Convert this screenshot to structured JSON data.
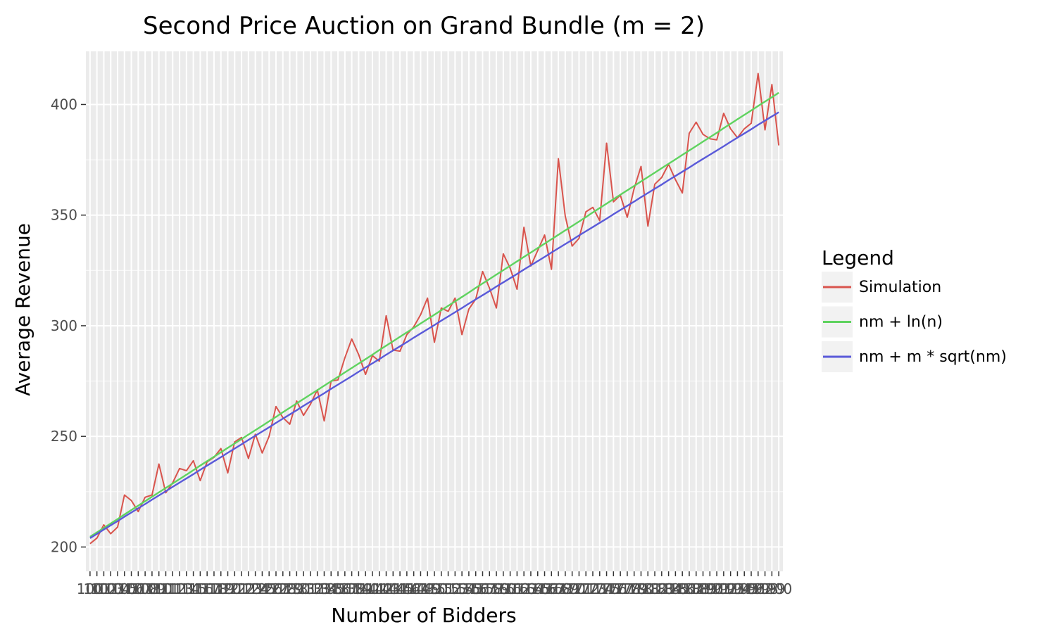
{
  "chart_data": {
    "type": "line",
    "title": "Second Price Auction on Grand Bundle (m = 2)",
    "xlabel": "Number of Bidders",
    "ylabel": "Average Revenue",
    "ylim": [
      189,
      424
    ],
    "yticks": [
      200,
      250,
      300,
      350,
      400
    ],
    "x": [
      100,
      101,
      102,
      103,
      104,
      105,
      106,
      107,
      108,
      109,
      110,
      111,
      112,
      113,
      114,
      115,
      116,
      117,
      118,
      119,
      120,
      121,
      122,
      123,
      124,
      125,
      126,
      127,
      128,
      129,
      130,
      131,
      132,
      133,
      134,
      135,
      136,
      137,
      138,
      139,
      140,
      141,
      142,
      143,
      144,
      145,
      146,
      147,
      148,
      149,
      150,
      151,
      152,
      153,
      154,
      155,
      156,
      157,
      158,
      159,
      160,
      161,
      162,
      163,
      164,
      165,
      166,
      167,
      168,
      169,
      170,
      171,
      172,
      173,
      174,
      175,
      176,
      177,
      178,
      179,
      180,
      181,
      182,
      183,
      184,
      185,
      186,
      187,
      188,
      189,
      190,
      191,
      192,
      193,
      194,
      195,
      196,
      197,
      198,
      199,
      200
    ],
    "x_tick_labels": [
      "100",
      "101",
      "102",
      "103",
      "104",
      "105",
      "106",
      "107",
      "108",
      "109",
      "110",
      "111",
      "112",
      "113",
      "114",
      "115",
      "116",
      "117",
      "118",
      "119",
      "120",
      "121",
      "122",
      "123",
      "124",
      "125",
      "126",
      "127",
      "128",
      "129",
      "130",
      "131",
      "132",
      "133",
      "134",
      "135",
      "136",
      "137",
      "138",
      "139",
      "140",
      "141",
      "142",
      "143",
      "144",
      "145",
      "146",
      "147",
      "148",
      "149",
      "150",
      "151",
      "152",
      "153",
      "154",
      "155",
      "156",
      "157",
      "158",
      "159",
      "160",
      "161",
      "162",
      "163",
      "164",
      "165",
      "166",
      "167",
      "168",
      "169",
      "170",
      "171",
      "172",
      "173",
      "174",
      "175",
      "176",
      "177",
      "178",
      "179",
      "180",
      "181",
      "182",
      "183",
      "184",
      "185",
      "186",
      "187",
      "188",
      "189",
      "190",
      "191",
      "192",
      "193",
      "194",
      "195",
      "196",
      "197",
      "198",
      "199",
      "200"
    ],
    "grid": true,
    "legend_position": "right",
    "legend_title": "Legend",
    "series": [
      {
        "name": "Simulation",
        "color": "#d9544d",
        "values": [
          201.5,
          204,
          210,
          206,
          209,
          223.5,
          221,
          216,
          222.5,
          223.5,
          237.5,
          224.5,
          229,
          235.5,
          234.5,
          239,
          230,
          238.5,
          240.5,
          244.5,
          233.5,
          247.5,
          249.5,
          240,
          251,
          242.5,
          250,
          263.5,
          258.5,
          255.5,
          266,
          259.5,
          264.5,
          271,
          257,
          275,
          275.5,
          285.5,
          294,
          287,
          278,
          286.5,
          284,
          304.5,
          289,
          288.5,
          296,
          299.5,
          305,
          312.5,
          292.5,
          308,
          306.5,
          312.5,
          296,
          307.5,
          312,
          324.5,
          317,
          308,
          332.5,
          326,
          316.5,
          344.5,
          327,
          334,
          341,
          325.5,
          375.5,
          349.5,
          336,
          339.5,
          351.5,
          353.5,
          347.5,
          382.5,
          356,
          359,
          349,
          362,
          372,
          345,
          364,
          367,
          373,
          366,
          360,
          387,
          392,
          386.5,
          384.5,
          384,
          396,
          389,
          385,
          389,
          391.5,
          414,
          388.5,
          409,
          381.5
        ]
      },
      {
        "name": "nm + ln(n)",
        "color": "#5fd35f",
        "values": [
          204.6,
          206.6,
          208.6,
          210.6,
          212.6,
          214.7,
          216.7,
          218.7,
          220.7,
          222.7,
          224.7,
          226.7,
          228.7,
          230.7,
          232.7,
          234.7,
          236.8,
          238.8,
          240.8,
          242.8,
          244.8,
          246.8,
          248.8,
          250.8,
          252.8,
          254.8,
          256.8,
          258.8,
          260.9,
          262.9,
          264.9,
          266.9,
          268.9,
          270.9,
          272.9,
          274.9,
          276.9,
          278.9,
          280.9,
          282.9,
          284.9,
          286.9,
          289.0,
          291.0,
          293.0,
          295.0,
          297.0,
          299.0,
          301.0,
          303.0,
          305.0,
          307.0,
          309.0,
          311.0,
          313.0,
          315.0,
          317.1,
          319.1,
          321.1,
          323.1,
          325.1,
          327.1,
          329.1,
          331.1,
          333.1,
          335.1,
          337.1,
          339.1,
          341.1,
          343.1,
          345.1,
          347.1,
          349.1,
          351.2,
          353.2,
          355.2,
          357.2,
          359.2,
          361.2,
          363.2,
          365.2,
          367.2,
          369.2,
          371.2,
          373.2,
          375.2,
          377.2,
          379.2,
          381.2,
          383.2,
          385.2,
          387.2,
          389.3,
          391.3,
          393.3,
          395.3,
          397.3,
          399.3,
          401.3,
          403.3,
          405.3
        ]
      },
      {
        "name": "nm + m * sqrt(nm)",
        "color": "#5a5ad9",
        "values": [
          204.0,
          205.9,
          207.9,
          209.8,
          211.7,
          213.7,
          215.6,
          217.5,
          219.4,
          221.4,
          223.3,
          225.2,
          227.2,
          229.1,
          231.0,
          232.9,
          234.9,
          236.8,
          238.7,
          240.6,
          242.6,
          244.5,
          246.4,
          248.4,
          250.3,
          252.2,
          254.1,
          256.1,
          258.0,
          259.9,
          261.8,
          263.8,
          265.7,
          267.6,
          269.5,
          271.5,
          273.4,
          275.3,
          277.2,
          279.2,
          281.1,
          283.0,
          284.9,
          286.9,
          288.8,
          290.7,
          292.6,
          294.6,
          296.5,
          298.4,
          300.3,
          302.3,
          304.2,
          306.1,
          308.0,
          310.0,
          311.9,
          313.8,
          315.7,
          317.7,
          319.6,
          321.5,
          323.4,
          325.4,
          327.3,
          329.2,
          331.1,
          333.1,
          335.0,
          336.9,
          338.8,
          340.8,
          342.7,
          344.6,
          346.5,
          348.4,
          350.4,
          352.3,
          354.2,
          356.1,
          358.1,
          360.0,
          361.9,
          363.8,
          365.8,
          367.7,
          369.6,
          371.5,
          373.5,
          375.4,
          377.3,
          379.2,
          381.1,
          383.1,
          385.0,
          386.9,
          388.8,
          390.8,
          392.7,
          394.6,
          396.5
        ]
      }
    ]
  }
}
